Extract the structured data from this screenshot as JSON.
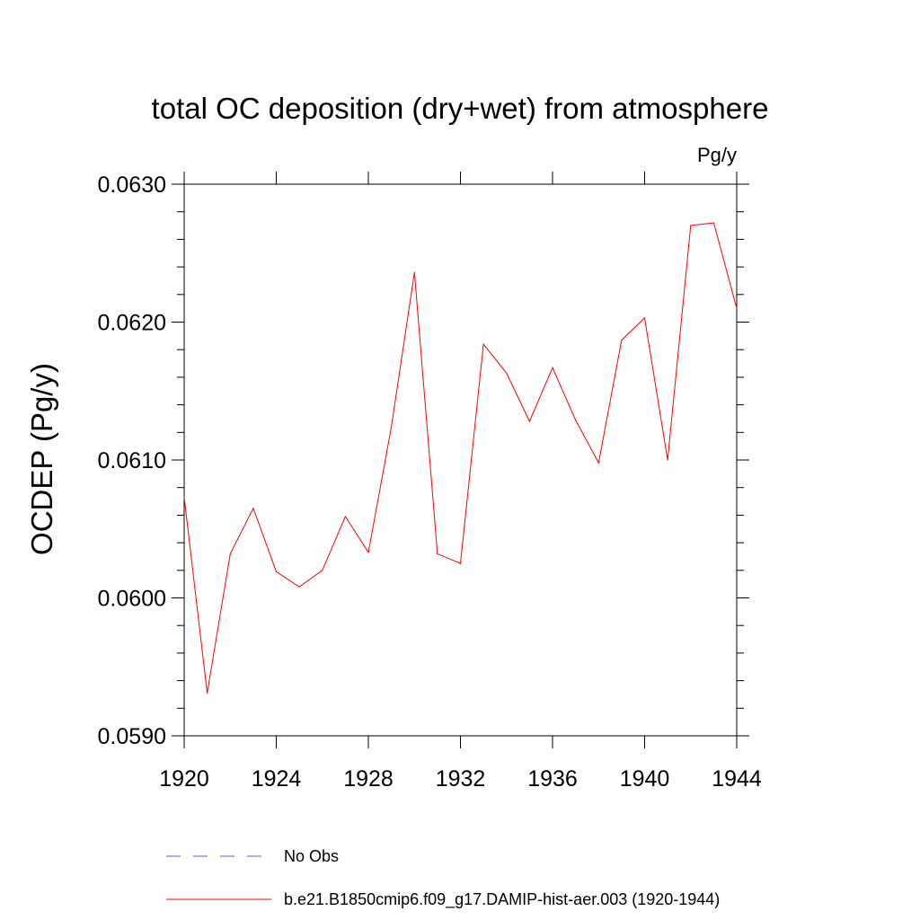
{
  "chart_data": {
    "type": "line",
    "title": "total OC deposition (dry+wet) from atmosphere",
    "units": "Pg/y",
    "ylabel": "OCDEP  (Pg/y)",
    "xlabel": "",
    "xlim": [
      1920,
      1944
    ],
    "ylim": [
      0.059,
      0.063
    ],
    "x_ticks": [
      "1920",
      "1924",
      "1928",
      "1932",
      "1936",
      "1940",
      "1944"
    ],
    "y_ticks": [
      "0.0590",
      "0.0600",
      "0.0610",
      "0.0620",
      "0.0630"
    ],
    "x": [
      1920,
      1921,
      1922,
      1923,
      1924,
      1925,
      1926,
      1927,
      1928,
      1929,
      1930,
      1931,
      1932,
      1933,
      1934,
      1935,
      1936,
      1937,
      1938,
      1939,
      1940,
      1941,
      1942,
      1943,
      1944
    ],
    "series": [
      {
        "name": "b.e21.B1850cmip6.f09_g17.DAMIP-hist-aer.003 (1920-1944)",
        "color": "#ff0000",
        "style": "solid",
        "values": [
          0.06073,
          0.05931,
          0.06032,
          0.06065,
          0.06019,
          0.06008,
          0.0602,
          0.06059,
          0.06033,
          0.06124,
          0.06236,
          0.06032,
          0.06025,
          0.06184,
          0.06163,
          0.06128,
          0.06167,
          0.06129,
          0.06098,
          0.06187,
          0.06203,
          0.061,
          0.0627,
          0.06272,
          0.0621
        ]
      }
    ],
    "legend": [
      {
        "label": "No Obs",
        "color": "#6a5acd",
        "style": "dashed"
      },
      {
        "label": "b.e21.B1850cmip6.f09_g17.DAMIP-hist-aer.003 (1920-1944)",
        "color": "#ff0000",
        "style": "solid"
      }
    ],
    "legend_position": "bottom",
    "grid": false
  }
}
